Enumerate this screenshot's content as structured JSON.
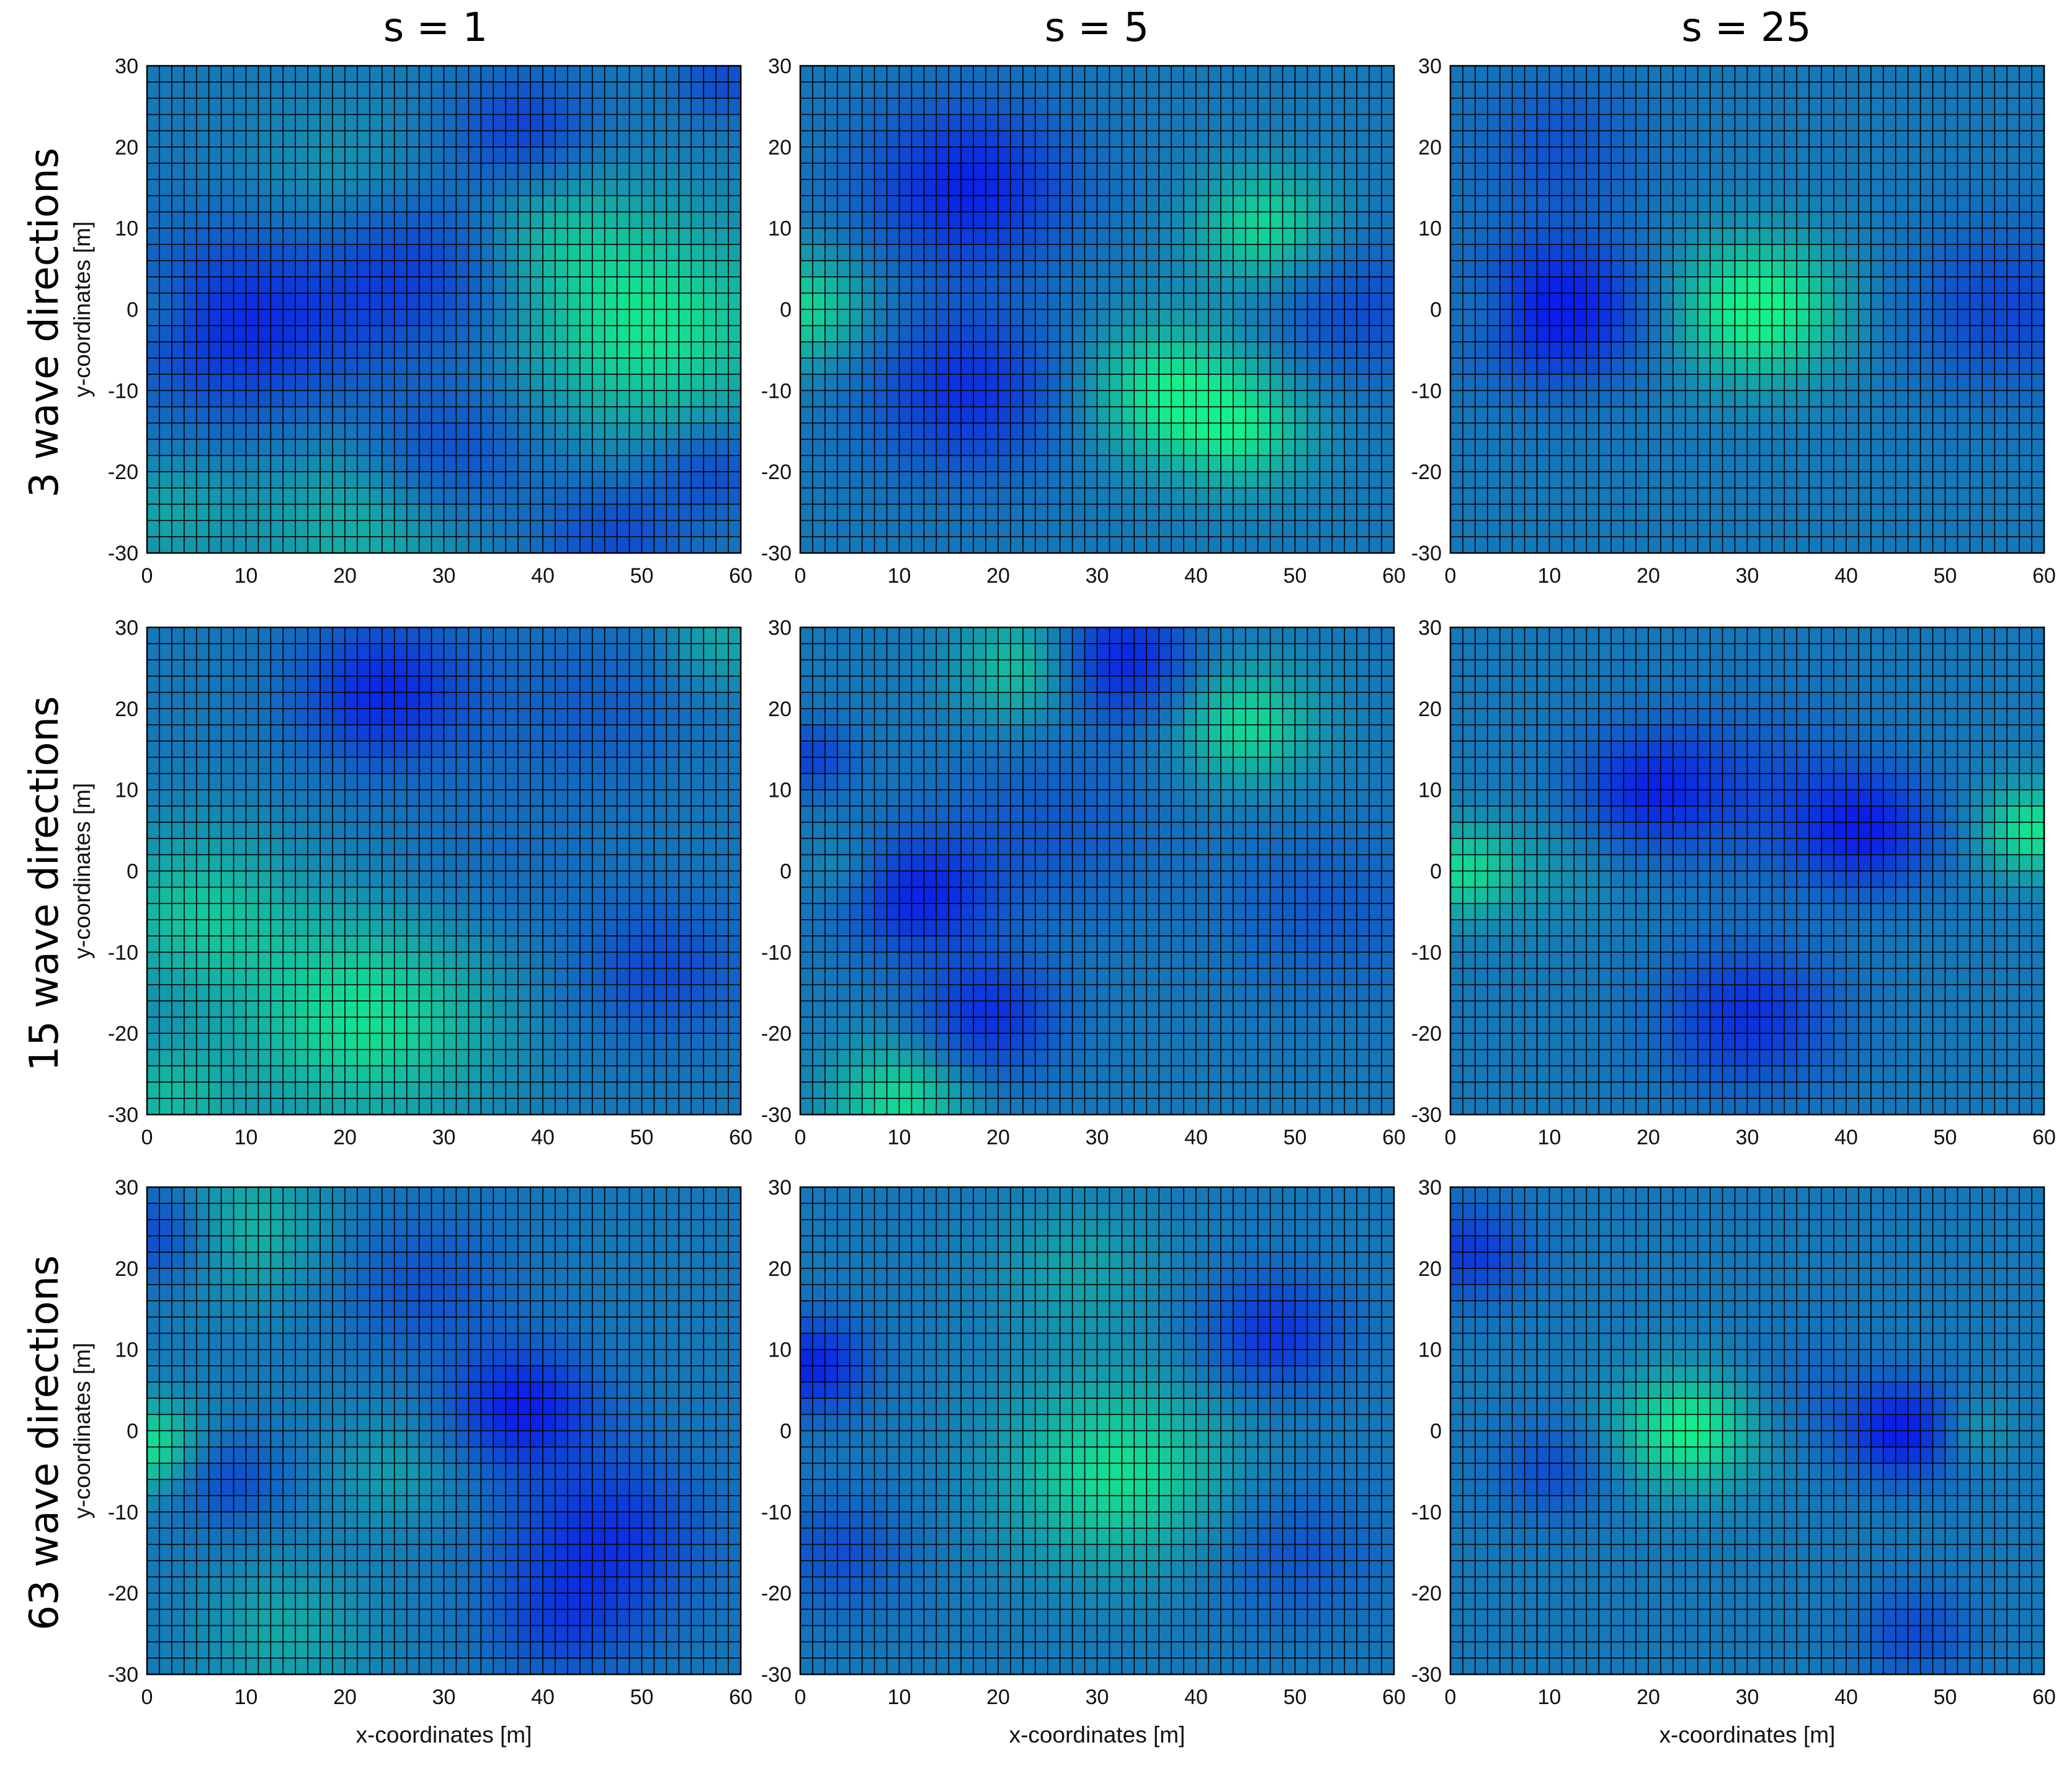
{
  "figure": {
    "column_titles": [
      "s = 1",
      "s = 5",
      "s = 25"
    ],
    "row_titles": [
      "3 wave directions",
      "15 wave directions",
      "63 wave directions"
    ]
  },
  "colors": {
    "low": "#0a1fe8",
    "mid": "#1478b9",
    "high": "#14f08c",
    "grid": "#000000"
  },
  "chart_data": [
    {
      "type": "heatmap",
      "id": "r0c0",
      "title": "s = 1",
      "row_label": "3 wave directions",
      "xlabel": "",
      "ylabel": "y-coordinates [m]",
      "xlim": [
        0,
        60
      ],
      "ylim": [
        -30,
        30
      ],
      "xticks": [
        0,
        10,
        20,
        30,
        40,
        50,
        60
      ],
      "yticks": [
        30,
        20,
        10,
        0,
        -10,
        -20,
        -30
      ],
      "grid": true,
      "colormap": "blue-green",
      "colorbar": false,
      "blobs": [
        [
          10,
          -2,
          0.85,
          8
        ],
        [
          27,
          5,
          0.65,
          7
        ],
        [
          30,
          -18,
          0.55,
          6
        ],
        [
          38,
          22,
          0.6,
          5
        ],
        [
          57,
          -20,
          0.5,
          4
        ],
        [
          58,
          28,
          0.5,
          3
        ],
        [
          47,
          -28,
          0.5,
          5
        ],
        [
          51,
          -2,
          -0.9,
          9
        ],
        [
          41,
          10,
          -0.4,
          6
        ],
        [
          22,
          -26,
          -0.5,
          8
        ],
        [
          2,
          -25,
          -0.35,
          5
        ],
        [
          20,
          15,
          -0.3,
          7
        ],
        [
          1,
          0,
          -0.3,
          3
        ]
      ]
    },
    {
      "type": "heatmap",
      "id": "r0c1",
      "title": "s = 5",
      "row_label": "3 wave directions",
      "xlabel": "",
      "ylabel": "",
      "xlim": [
        0,
        60
      ],
      "ylim": [
        -30,
        30
      ],
      "xticks": [
        0,
        10,
        20,
        30,
        40,
        50,
        60
      ],
      "yticks": [
        30,
        20,
        10,
        0,
        -10,
        -20,
        -30
      ],
      "grid": true,
      "colormap": "blue-green",
      "colorbar": false,
      "blobs": [
        [
          17,
          15,
          0.95,
          7
        ],
        [
          17,
          -10,
          0.8,
          7
        ],
        [
          56,
          0,
          0.5,
          6
        ],
        [
          0,
          0,
          -0.8,
          5
        ],
        [
          37,
          -10,
          -0.9,
          6
        ],
        [
          47,
          10,
          -0.8,
          5
        ],
        [
          45,
          -15,
          -0.7,
          5
        ]
      ]
    },
    {
      "type": "heatmap",
      "id": "r0c2",
      "title": "s = 25",
      "row_label": "3 wave directions",
      "xlabel": "",
      "ylabel": "",
      "xlim": [
        0,
        60
      ],
      "ylim": [
        -30,
        30
      ],
      "xticks": [
        0,
        10,
        20,
        30,
        40,
        50,
        60
      ],
      "yticks": [
        30,
        20,
        10,
        0,
        -10,
        -20,
        -30
      ],
      "grid": true,
      "colormap": "blue-green",
      "colorbar": false,
      "blobs": [
        [
          11,
          0,
          1.1,
          6
        ],
        [
          11,
          20,
          0.4,
          6
        ],
        [
          56,
          0,
          0.55,
          7
        ],
        [
          31,
          0,
          -1.1,
          6
        ],
        [
          4,
          0,
          -0.3,
          3
        ]
      ]
    },
    {
      "type": "heatmap",
      "id": "r1c0",
      "title": "",
      "row_label": "15 wave directions",
      "xlabel": "",
      "ylabel": "y-coordinates [m]",
      "xlim": [
        0,
        60
      ],
      "ylim": [
        -30,
        30
      ],
      "xticks": [
        0,
        10,
        20,
        30,
        40,
        50,
        60
      ],
      "yticks": [
        30,
        20,
        10,
        0,
        -10,
        -20,
        -30
      ],
      "grid": true,
      "colormap": "blue-green",
      "colorbar": false,
      "blobs": [
        [
          24,
          22,
          0.9,
          6
        ],
        [
          52,
          -12,
          0.5,
          6
        ],
        [
          45,
          20,
          0.3,
          7
        ],
        [
          22,
          -18,
          -0.85,
          9
        ],
        [
          5,
          -5,
          -0.6,
          7
        ],
        [
          2,
          -28,
          -0.5,
          5
        ],
        [
          58,
          28,
          -0.4,
          4
        ],
        [
          35,
          0,
          0.15,
          8
        ]
      ]
    },
    {
      "type": "heatmap",
      "id": "r1c1",
      "title": "",
      "row_label": "15 wave directions",
      "xlabel": "",
      "ylabel": "",
      "xlim": [
        0,
        60
      ],
      "ylim": [
        -30,
        30
      ],
      "xticks": [
        0,
        10,
        20,
        30,
        40,
        50,
        60
      ],
      "yticks": [
        30,
        20,
        10,
        0,
        -10,
        -20,
        -30
      ],
      "grid": true,
      "colormap": "blue-green",
      "colorbar": false,
      "blobs": [
        [
          32,
          26,
          1.0,
          5
        ],
        [
          12,
          -3,
          0.9,
          5
        ],
        [
          19,
          -18,
          0.8,
          5
        ],
        [
          1,
          14,
          0.6,
          3
        ],
        [
          25,
          5,
          0.35,
          8
        ],
        [
          53,
          -5,
          0.35,
          7
        ],
        [
          45,
          18,
          -0.8,
          5
        ],
        [
          23,
          25,
          -0.7,
          5
        ],
        [
          10,
          -28,
          -0.8,
          5
        ],
        [
          5,
          0,
          -0.3,
          3
        ]
      ]
    },
    {
      "type": "heatmap",
      "id": "r1c2",
      "title": "",
      "row_label": "15 wave directions",
      "xlabel": "",
      "ylabel": "",
      "xlim": [
        0,
        60
      ],
      "ylim": [
        -30,
        30
      ],
      "xticks": [
        0,
        10,
        20,
        30,
        40,
        50,
        60
      ],
      "yticks": [
        30,
        20,
        10,
        0,
        -10,
        -20,
        -30
      ],
      "grid": true,
      "colormap": "blue-green",
      "colorbar": false,
      "blobs": [
        [
          20,
          10,
          0.85,
          5
        ],
        [
          42,
          5,
          0.95,
          5
        ],
        [
          30,
          -18,
          0.8,
          6
        ],
        [
          31,
          10,
          0.4,
          7
        ],
        [
          1,
          0,
          -0.8,
          4
        ],
        [
          59,
          5,
          -0.9,
          4
        ],
        [
          11,
          0,
          -0.2,
          5
        ]
      ]
    },
    {
      "type": "heatmap",
      "id": "r2c0",
      "title": "",
      "row_label": "63 wave directions",
      "xlabel": "x-coordinates [m]",
      "ylabel": "y-coordinates [m]",
      "xlim": [
        0,
        60
      ],
      "ylim": [
        -30,
        30
      ],
      "xticks": [
        0,
        10,
        20,
        30,
        40,
        50,
        60
      ],
      "yticks": [
        30,
        20,
        10,
        0,
        -10,
        -20,
        -30
      ],
      "grid": true,
      "colormap": "blue-green",
      "colorbar": false,
      "blobs": [
        [
          38,
          3,
          1.0,
          5
        ],
        [
          46,
          -13,
          0.8,
          7
        ],
        [
          1,
          24,
          0.6,
          4
        ],
        [
          8,
          -6,
          0.5,
          4
        ],
        [
          42,
          -24,
          0.5,
          5
        ],
        [
          28,
          18,
          0.4,
          6
        ],
        [
          0,
          -2,
          -0.9,
          4
        ],
        [
          10,
          25,
          -0.5,
          6
        ],
        [
          14,
          -25,
          -0.4,
          6
        ],
        [
          25,
          -5,
          -0.3,
          5
        ]
      ]
    },
    {
      "type": "heatmap",
      "id": "r2c1",
      "title": "",
      "row_label": "63 wave directions",
      "xlabel": "x-coordinates [m]",
      "ylabel": "",
      "xlim": [
        0,
        60
      ],
      "ylim": [
        -30,
        30
      ],
      "xticks": [
        0,
        10,
        20,
        30,
        40,
        50,
        60
      ],
      "yticks": [
        30,
        20,
        10,
        0,
        -10,
        -20,
        -30
      ],
      "grid": true,
      "colormap": "blue-green",
      "colorbar": false,
      "blobs": [
        [
          1,
          8,
          0.95,
          4
        ],
        [
          48,
          12,
          0.75,
          5
        ],
        [
          4,
          -15,
          0.45,
          5
        ],
        [
          50,
          -15,
          0.4,
          6
        ],
        [
          32,
          -5,
          -0.85,
          8
        ],
        [
          28,
          20,
          -0.35,
          6
        ]
      ]
    },
    {
      "type": "heatmap",
      "id": "r2c2",
      "title": "",
      "row_label": "63 wave directions",
      "xlabel": "x-coordinates [m]",
      "ylabel": "",
      "xlim": [
        0,
        60
      ],
      "ylim": [
        -30,
        30
      ],
      "xticks": [
        0,
        10,
        20,
        30,
        40,
        50,
        60
      ],
      "yticks": [
        30,
        20,
        10,
        0,
        -10,
        -20,
        -30
      ],
      "grid": true,
      "colormap": "blue-green",
      "colorbar": false,
      "blobs": [
        [
          46,
          0,
          1.1,
          4
        ],
        [
          47,
          -25,
          0.5,
          4
        ],
        [
          2,
          22,
          0.7,
          4
        ],
        [
          10,
          -5,
          0.45,
          4
        ],
        [
          24,
          0,
          -1.0,
          5
        ],
        [
          52,
          0,
          -0.45,
          3
        ],
        [
          36,
          5,
          0.2,
          5
        ]
      ]
    }
  ]
}
